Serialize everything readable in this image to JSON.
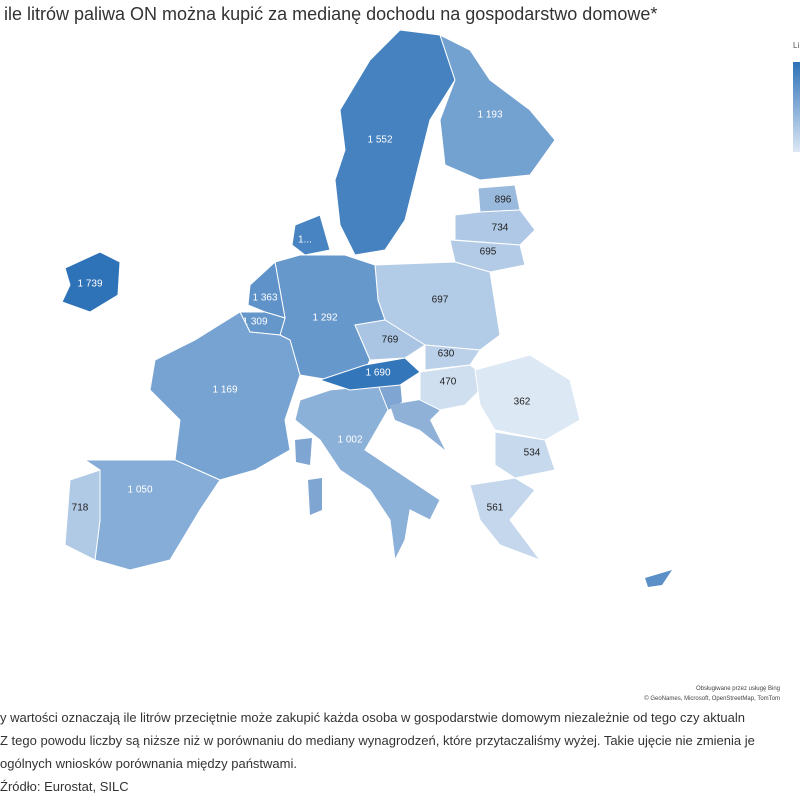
{
  "title": "ile litrów paliwa ON można kupić za medianę dochodu na gospodarstwo domowe*",
  "legend_title": "Li",
  "color_scale": [
    "#dde8f5",
    "#2e72b8"
  ],
  "regions": [
    {
      "value": 1739,
      "label": "1 739"
    },
    {
      "value": 1552,
      "label": "1 552"
    },
    {
      "value": 1193,
      "label": "1 193"
    },
    {
      "value": 896,
      "label": "896"
    },
    {
      "value": 734,
      "label": "734"
    },
    {
      "value": 695,
      "label": "695"
    },
    {
      "label": "1..."
    },
    {
      "value": 697,
      "label": "697"
    },
    {
      "value": 1292,
      "label": "1 292"
    },
    {
      "value": 1363,
      "label": "1 363"
    },
    {
      "value": 1309,
      "label": "1 309"
    },
    {
      "value": 1169,
      "label": "1 169"
    },
    {
      "value": 1050,
      "label": "1 050"
    },
    {
      "value": 718,
      "label": "718"
    },
    {
      "value": 1002,
      "label": "1 002"
    },
    {
      "value": 769,
      "label": "769"
    },
    {
      "value": 1690,
      "label": "1 690"
    },
    {
      "value": 630,
      "label": "630"
    },
    {
      "value": 470,
      "label": "470"
    },
    {
      "value": 362,
      "label": "362"
    },
    {
      "value": 534,
      "label": "534"
    },
    {
      "value": 561,
      "label": "561"
    }
  ],
  "attribution": [
    "Obsługiwane przez usługę Bing",
    "© GeoNames, Microsoft, OpenStreetMap, TomTom"
  ],
  "footnote": [
    "y wartości oznaczają ile litrów przeciętnie może zakupić każda osoba w gospodarstwie domowym niezależnie od tego czy aktualn",
    "Z tego powodu liczby są niższe niż w porównaniu do mediany wynagrodzeń, które przytaczaliśmy wyżej. Takie ujęcie nie zmienia je",
    "ogólnych wniosków porównania między państwami."
  ],
  "source": "Źródło: Eurostat, SILC"
}
